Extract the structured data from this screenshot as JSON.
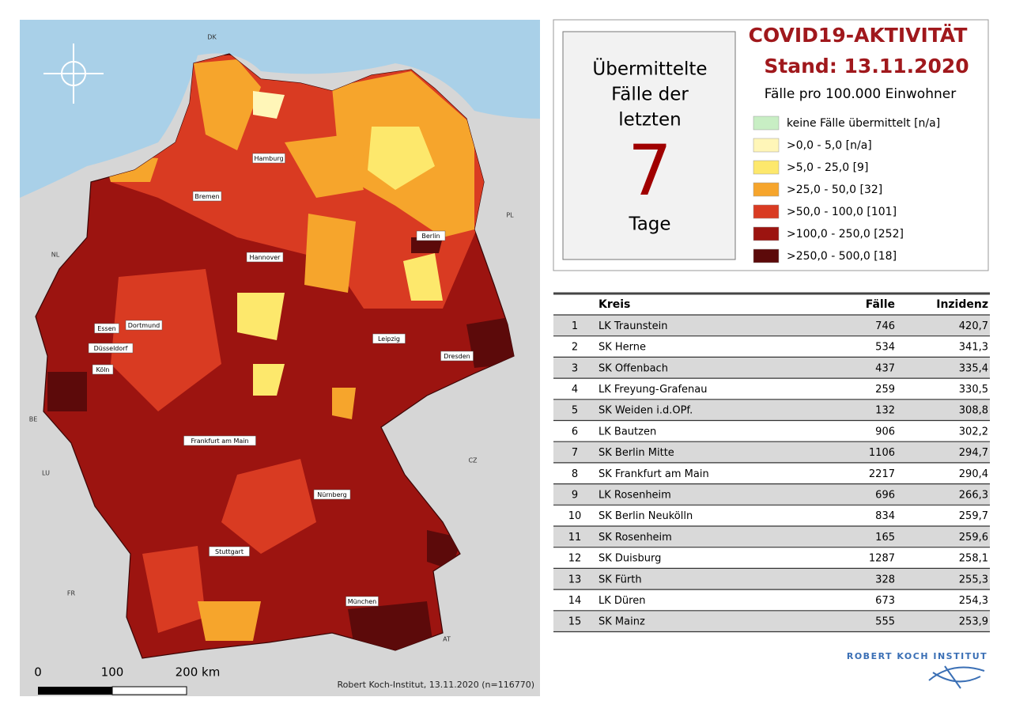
{
  "map": {
    "countries": [
      "DK",
      "NL",
      "BE",
      "LU",
      "FR",
      "AT",
      "CZ",
      "PL"
    ],
    "cities": [
      "Hamburg",
      "Bremen",
      "Hannover",
      "Berlin",
      "Leipzig",
      "Dresden",
      "Essen",
      "Dortmund",
      "Düsseldorf",
      "Köln",
      "Frankfurt am Main",
      "Nürnberg",
      "Stuttgart",
      "München"
    ],
    "scale": [
      "0",
      "100",
      "200 km"
    ],
    "source": "Robert Koch-Institut, 13.11.2020 (n=116770)"
  },
  "header": {
    "box_lines": [
      "Übermittelte",
      "Fälle der",
      "letzten"
    ],
    "days": "7",
    "days_unit": "Tage",
    "title": "COVID19-AKTIVITÄT",
    "date": "Stand: 13.11.2020",
    "subtitle": "Fälle pro 100.000 Einwohner"
  },
  "legend": [
    {
      "label": "keine Fälle übermittelt [n/a]",
      "color": "#c8eec4"
    },
    {
      "label": ">0,0 - 5,0 [n/a]",
      "color": "#fff6b8"
    },
    {
      "label": ">5,0 - 25,0 [9]",
      "color": "#fde86c"
    },
    {
      "label": ">25,0 - 50,0 [32]",
      "color": "#f6a52c"
    },
    {
      "label": ">50,0 - 100,0 [101]",
      "color": "#d93b22"
    },
    {
      "label": ">100,0 - 250,0 [252]",
      "color": "#9c1410"
    },
    {
      "label": ">250,0 - 500,0 [18]",
      "color": "#5c0a0a"
    }
  ],
  "table": {
    "columns": [
      "Kreis",
      "Fälle",
      "Inzidenz"
    ],
    "rows": [
      [
        "1",
        "LK Traunstein",
        "746",
        "420,7"
      ],
      [
        "2",
        "SK Herne",
        "534",
        "341,3"
      ],
      [
        "3",
        "SK Offenbach",
        "437",
        "335,4"
      ],
      [
        "4",
        "LK Freyung-Grafenau",
        "259",
        "330,5"
      ],
      [
        "5",
        "SK Weiden i.d.OPf.",
        "132",
        "308,8"
      ],
      [
        "6",
        "LK Bautzen",
        "906",
        "302,2"
      ],
      [
        "7",
        "SK Berlin Mitte",
        "1106",
        "294,7"
      ],
      [
        "8",
        "SK Frankfurt am Main",
        "2217",
        "290,4"
      ],
      [
        "9",
        "LK Rosenheim",
        "696",
        "266,3"
      ],
      [
        "10",
        "SK Berlin Neukölln",
        "834",
        "259,7"
      ],
      [
        "11",
        "SK Rosenheim",
        "165",
        "259,6"
      ],
      [
        "12",
        "SK Duisburg",
        "1287",
        "258,1"
      ],
      [
        "13",
        "SK Fürth",
        "328",
        "255,3"
      ],
      [
        "14",
        "LK Düren",
        "673",
        "254,3"
      ],
      [
        "15",
        "SK Mainz",
        "555",
        "253,9"
      ]
    ]
  },
  "logo": "ROBERT KOCH INSTITUT"
}
